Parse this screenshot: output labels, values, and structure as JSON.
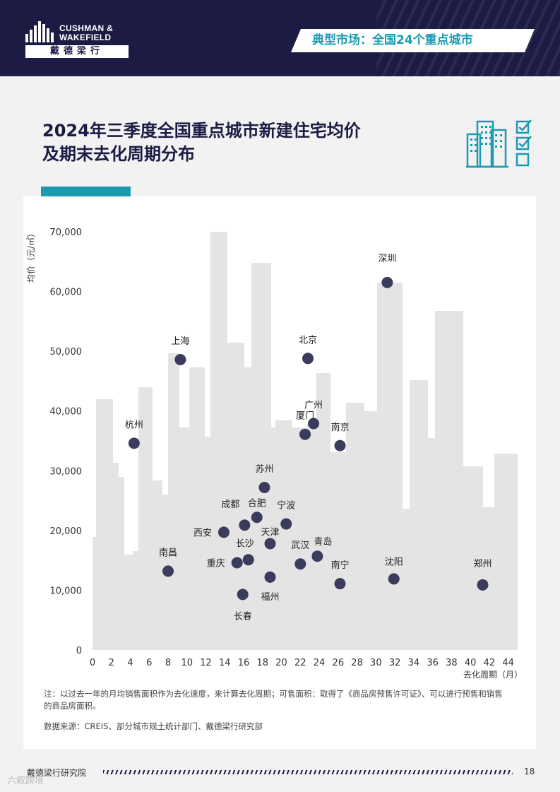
{
  "header": {
    "logo_line1": "CUSHMAN &",
    "logo_line2": "WAKEFIELD",
    "logo_cn": "戴德梁行",
    "banner": "典型市场：全国24个重点城市"
  },
  "title": {
    "line1": "2024年三季度全国重点城市新建住宅均价",
    "line2": "及期末去化周期分布"
  },
  "chart_data": {
    "type": "scatter",
    "ylabel": "均价（元/㎡）",
    "xlabel": "去化周期（月）",
    "xlim": [
      0,
      45
    ],
    "ylim": [
      0,
      70000
    ],
    "x_ticks": [
      "0",
      "2",
      "4",
      "6",
      "8",
      "10",
      "12",
      "14",
      "16",
      "18",
      "20",
      "22",
      "24",
      "26",
      "28",
      "30",
      "32",
      "34",
      "36",
      "38",
      "40",
      "42",
      "44"
    ],
    "y_ticks": [
      "0",
      "10,000",
      "20,000",
      "30,000",
      "40,000",
      "50,000",
      "60,000",
      "70,000"
    ],
    "points": [
      {
        "name": "深圳",
        "x": 31.2,
        "y": 61500
      },
      {
        "name": "北京",
        "x": 22.8,
        "y": 48800
      },
      {
        "name": "上海",
        "x": 9.3,
        "y": 48600
      },
      {
        "name": "广州",
        "x": 23.4,
        "y": 37900
      },
      {
        "name": "厦门",
        "x": 22.5,
        "y": 36100
      },
      {
        "name": "杭州",
        "x": 4.4,
        "y": 34600
      },
      {
        "name": "南京",
        "x": 26.2,
        "y": 34200
      },
      {
        "name": "苏州",
        "x": 18.2,
        "y": 27200
      },
      {
        "name": "合肥",
        "x": 17.4,
        "y": 22200
      },
      {
        "name": "宁波",
        "x": 20.5,
        "y": 21100
      },
      {
        "name": "成都",
        "x": 16.1,
        "y": 20900
      },
      {
        "name": "西安",
        "x": 13.9,
        "y": 19700
      },
      {
        "name": "天津",
        "x": 18.8,
        "y": 17800
      },
      {
        "name": "青岛",
        "x": 23.8,
        "y": 15700
      },
      {
        "name": "长沙",
        "x": 16.5,
        "y": 15100
      },
      {
        "name": "重庆",
        "x": 15.3,
        "y": 14600
      },
      {
        "name": "武汉",
        "x": 22.0,
        "y": 14400
      },
      {
        "name": "南昌",
        "x": 8.0,
        "y": 13200
      },
      {
        "name": "福州",
        "x": 18.8,
        "y": 12200
      },
      {
        "name": "沈阳",
        "x": 31.9,
        "y": 11900
      },
      {
        "name": "南宁",
        "x": 26.2,
        "y": 11100
      },
      {
        "name": "郑州",
        "x": 41.3,
        "y": 10900
      },
      {
        "name": "长春",
        "x": 15.9,
        "y": 9300
      }
    ],
    "point_color": "#3b3b5e"
  },
  "note": "注：以过去一年的月均销售面积作为去化速度，来计算去化周期；可售面积：取得了《商品房预售许可证》、可以进行预售和销售的商品房面积。",
  "source": "数据来源：CREIS、部分城市规土统计部门、戴德梁行研究部",
  "footer": {
    "org": "戴德梁行研究院",
    "page": "18",
    "watermark": "六叙跨境"
  },
  "colors": {
    "navy": "#1b1b44",
    "teal": "#1a9bb1",
    "skyline": "#e4e4e4"
  }
}
